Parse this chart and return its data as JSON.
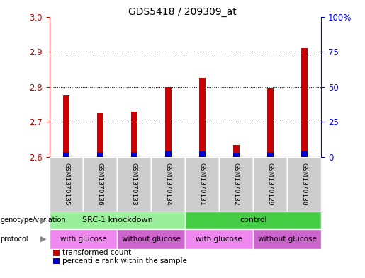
{
  "title": "GDS5418 / 209309_at",
  "samples": [
    "GSM1370135",
    "GSM1370136",
    "GSM1370133",
    "GSM1370134",
    "GSM1370131",
    "GSM1370132",
    "GSM1370129",
    "GSM1370130"
  ],
  "red_values": [
    2.775,
    2.725,
    2.73,
    2.8,
    2.825,
    2.635,
    2.795,
    2.91
  ],
  "blue_values": [
    2.615,
    2.615,
    2.615,
    2.618,
    2.617,
    2.613,
    2.615,
    2.618
  ],
  "baseline": 2.6,
  "ylim_left": [
    2.6,
    3.0
  ],
  "ylim_right": [
    0,
    100
  ],
  "yticks_left": [
    2.6,
    2.7,
    2.8,
    2.9,
    3.0
  ],
  "yticks_right": [
    0,
    25,
    50,
    75,
    100
  ],
  "ytick_labels_right": [
    "0",
    "25",
    "50",
    "75",
    "100%"
  ],
  "red_color": "#cc0000",
  "blue_color": "#0000cc",
  "bar_width": 0.18,
  "background_color": "#ffffff",
  "plot_bg_color": "#ffffff",
  "genotype_groups": [
    {
      "label": "SRC-1 knockdown",
      "start": 0,
      "end": 3,
      "color": "#99ee99"
    },
    {
      "label": "control",
      "start": 4,
      "end": 7,
      "color": "#44cc44"
    }
  ],
  "protocol_groups": [
    {
      "label": "with glucose",
      "start": 0,
      "end": 1,
      "color": "#ee88ee"
    },
    {
      "label": "without glucose",
      "start": 2,
      "end": 3,
      "color": "#cc66cc"
    },
    {
      "label": "with glucose",
      "start": 4,
      "end": 5,
      "color": "#ee88ee"
    },
    {
      "label": "without glucose",
      "start": 6,
      "end": 7,
      "color": "#cc66cc"
    }
  ],
  "legend_items": [
    {
      "label": "transformed count",
      "color": "#cc0000"
    },
    {
      "label": "percentile rank within the sample",
      "color": "#0000cc"
    }
  ],
  "sample_bg_color": "#cccccc",
  "left_axis_color": "#cc0000",
  "right_axis_color": "#0000ff",
  "grid_ticks": [
    2.7,
    2.8,
    2.9
  ]
}
